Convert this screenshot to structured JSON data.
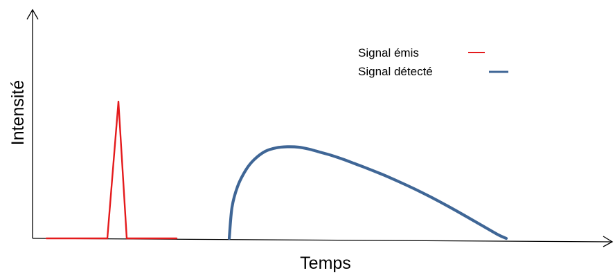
{
  "chart_data": {
    "type": "line",
    "title": "",
    "xlabel": "Temps",
    "ylabel": "Intensité",
    "xlim": [
      0,
      10
    ],
    "ylim": [
      0,
      10
    ],
    "grid": false,
    "legend_position": "top-right",
    "series": [
      {
        "name": "Signal émis",
        "color": "#e41a1c",
        "x": [
          0.25,
          1.35,
          1.55,
          1.7,
          2.6
        ],
        "y": [
          0.0,
          0.0,
          6.6,
          0.0,
          0.0
        ]
      },
      {
        "name": "Signal détecté",
        "color": "#3f6696",
        "x": [
          3.55,
          3.6,
          3.7,
          3.85,
          4.0,
          4.2,
          4.4,
          4.6,
          4.8,
          5.0,
          5.2,
          5.4,
          5.6,
          5.8,
          6.0,
          6.3,
          6.6,
          6.9,
          7.2,
          7.5,
          7.8,
          8.1,
          8.4,
          8.55
        ],
        "y": [
          0.0,
          1.5,
          2.5,
          3.3,
          3.8,
          4.2,
          4.37,
          4.42,
          4.4,
          4.3,
          4.15,
          4.0,
          3.82,
          3.62,
          3.42,
          3.1,
          2.75,
          2.38,
          1.98,
          1.55,
          1.1,
          0.64,
          0.18,
          0.0
        ]
      }
    ]
  }
}
